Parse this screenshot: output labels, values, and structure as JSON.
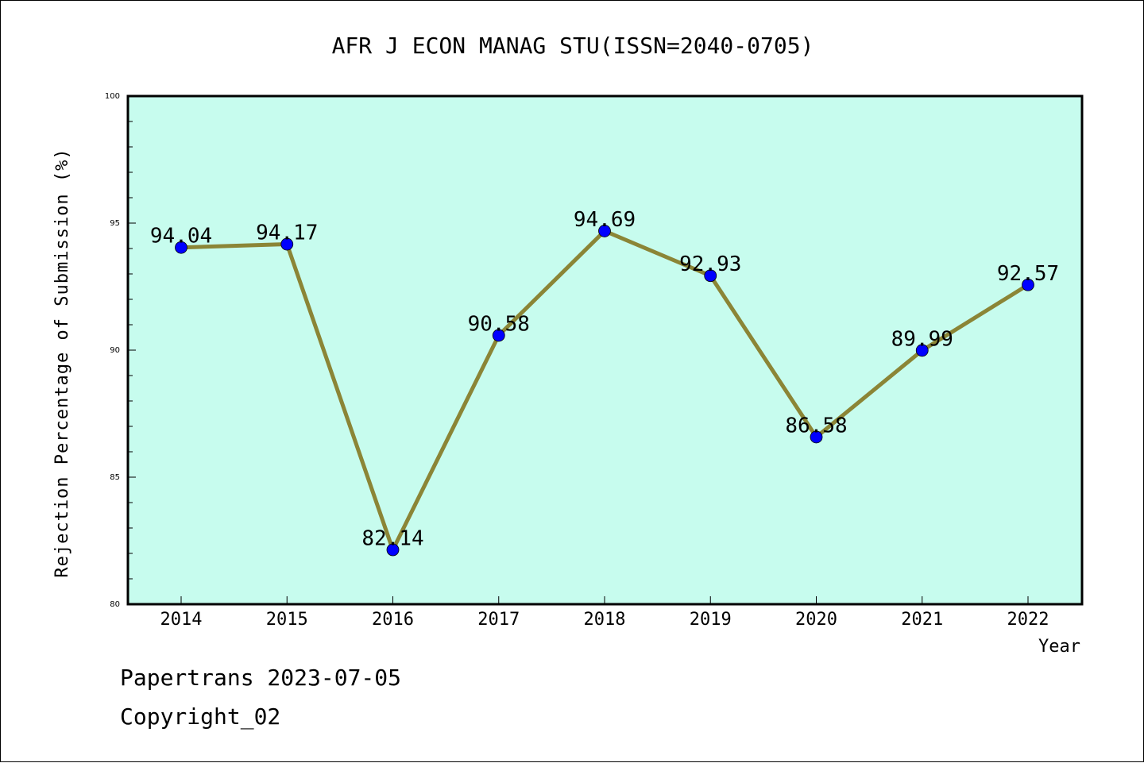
{
  "chart_data": {
    "type": "line",
    "title": "AFR J ECON MANAG STU(ISSN=2040-0705)",
    "xlabel": "Year",
    "ylabel": "Rejection Percentage of Submission (%)",
    "categories": [
      "2014",
      "2015",
      "2016",
      "2017",
      "2018",
      "2019",
      "2020",
      "2021",
      "2022"
    ],
    "series": [
      {
        "values": [
          94.04,
          94.17,
          82.14,
          90.58,
          94.69,
          92.93,
          86.58,
          89.99,
          92.57
        ]
      }
    ],
    "data_labels": [
      "94.04",
      "94.17",
      "82.14",
      "90.58",
      "94.69",
      "92.93",
      "86.58",
      "89.99",
      "92.57"
    ],
    "ylim": [
      80,
      100
    ],
    "yticks": [
      80,
      85,
      90,
      95,
      100
    ],
    "grid": false,
    "colors": {
      "plot_background": "#c7fcee",
      "line": "#8b8536",
      "marker": "#0000ff"
    }
  },
  "footer": {
    "line1": "Papertrans 2023-07-05",
    "line2": "Copyright_02"
  }
}
